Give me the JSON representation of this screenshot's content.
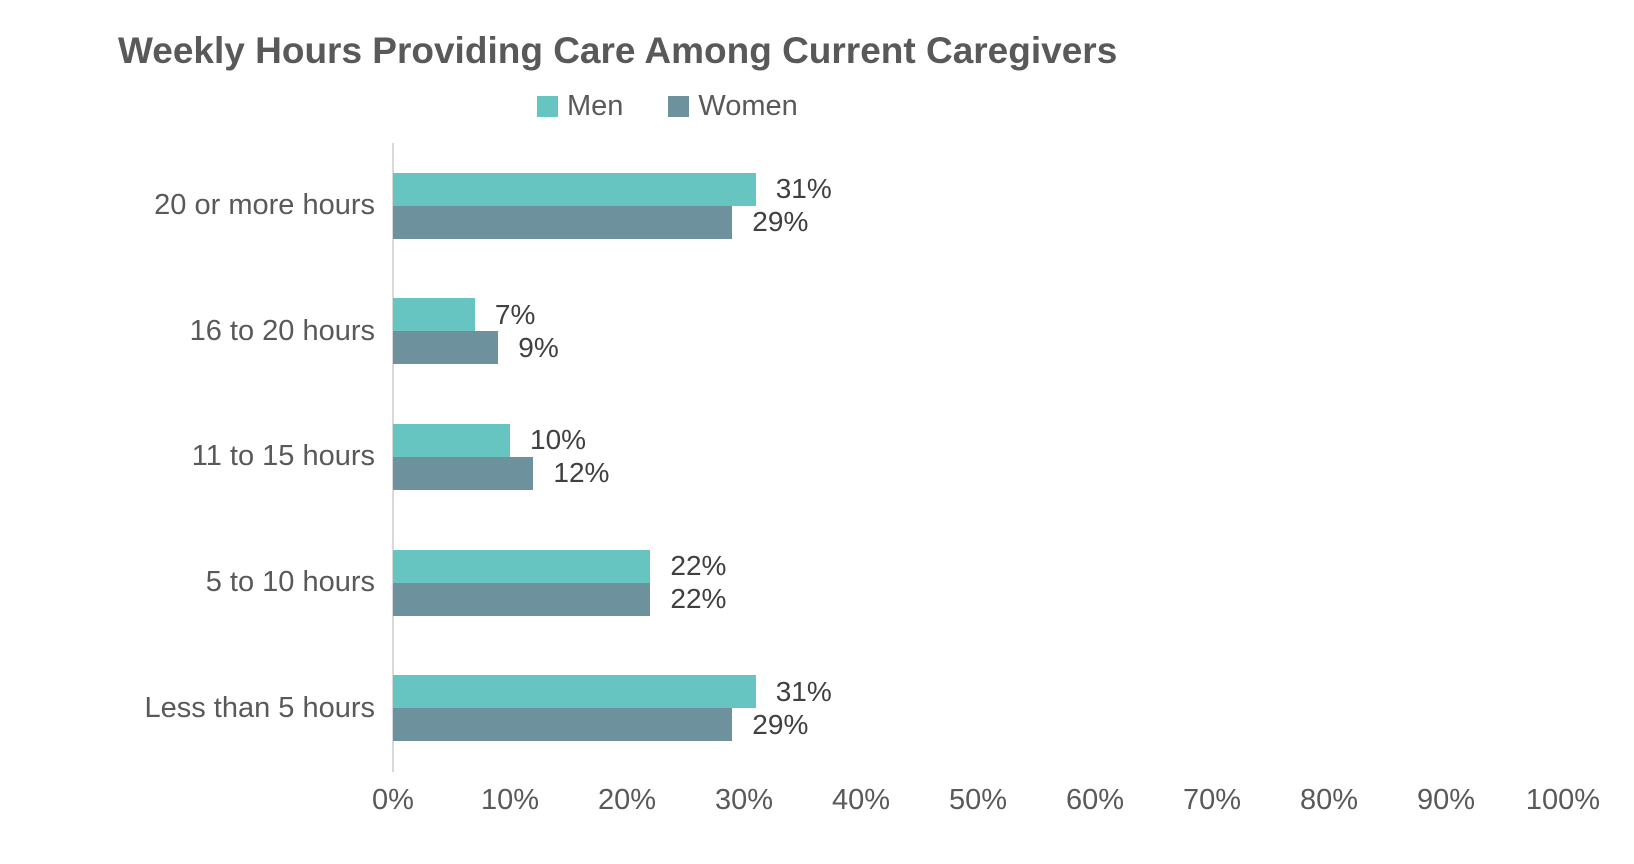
{
  "title": "Weekly Hours Providing Care Among Current Caregivers",
  "colors": {
    "men": "#66C5C0",
    "women": "#6D919D",
    "title_text": "#595959",
    "axis_text": "#595959",
    "value_text": "#404040",
    "axis_line": "#D9D9D9",
    "background": "#FFFFFF"
  },
  "chart_data": {
    "type": "bar",
    "orientation": "horizontal",
    "title": "Weekly Hours Providing Care Among Current Caregivers",
    "categories": [
      "20 or more hours",
      "16 to 20 hours",
      "11 to 15 hours",
      "5 to 10 hours",
      "Less than 5 hours"
    ],
    "series": [
      {
        "name": "Men",
        "color": "#66C5C0",
        "values": [
          31,
          7,
          10,
          22,
          31
        ]
      },
      {
        "name": "Women",
        "color": "#6D919D",
        "values": [
          29,
          9,
          12,
          22,
          29
        ]
      }
    ],
    "value_suffix": "%",
    "data_labels_shown": true,
    "xlabel": "",
    "ylabel": "",
    "xlim": [
      0,
      100
    ],
    "x_ticks": [
      "0%",
      "10%",
      "20%",
      "30%",
      "40%",
      "50%",
      "60%",
      "70%",
      "80%",
      "90%",
      "100%"
    ],
    "grid": false,
    "legend_position": "top-center"
  }
}
